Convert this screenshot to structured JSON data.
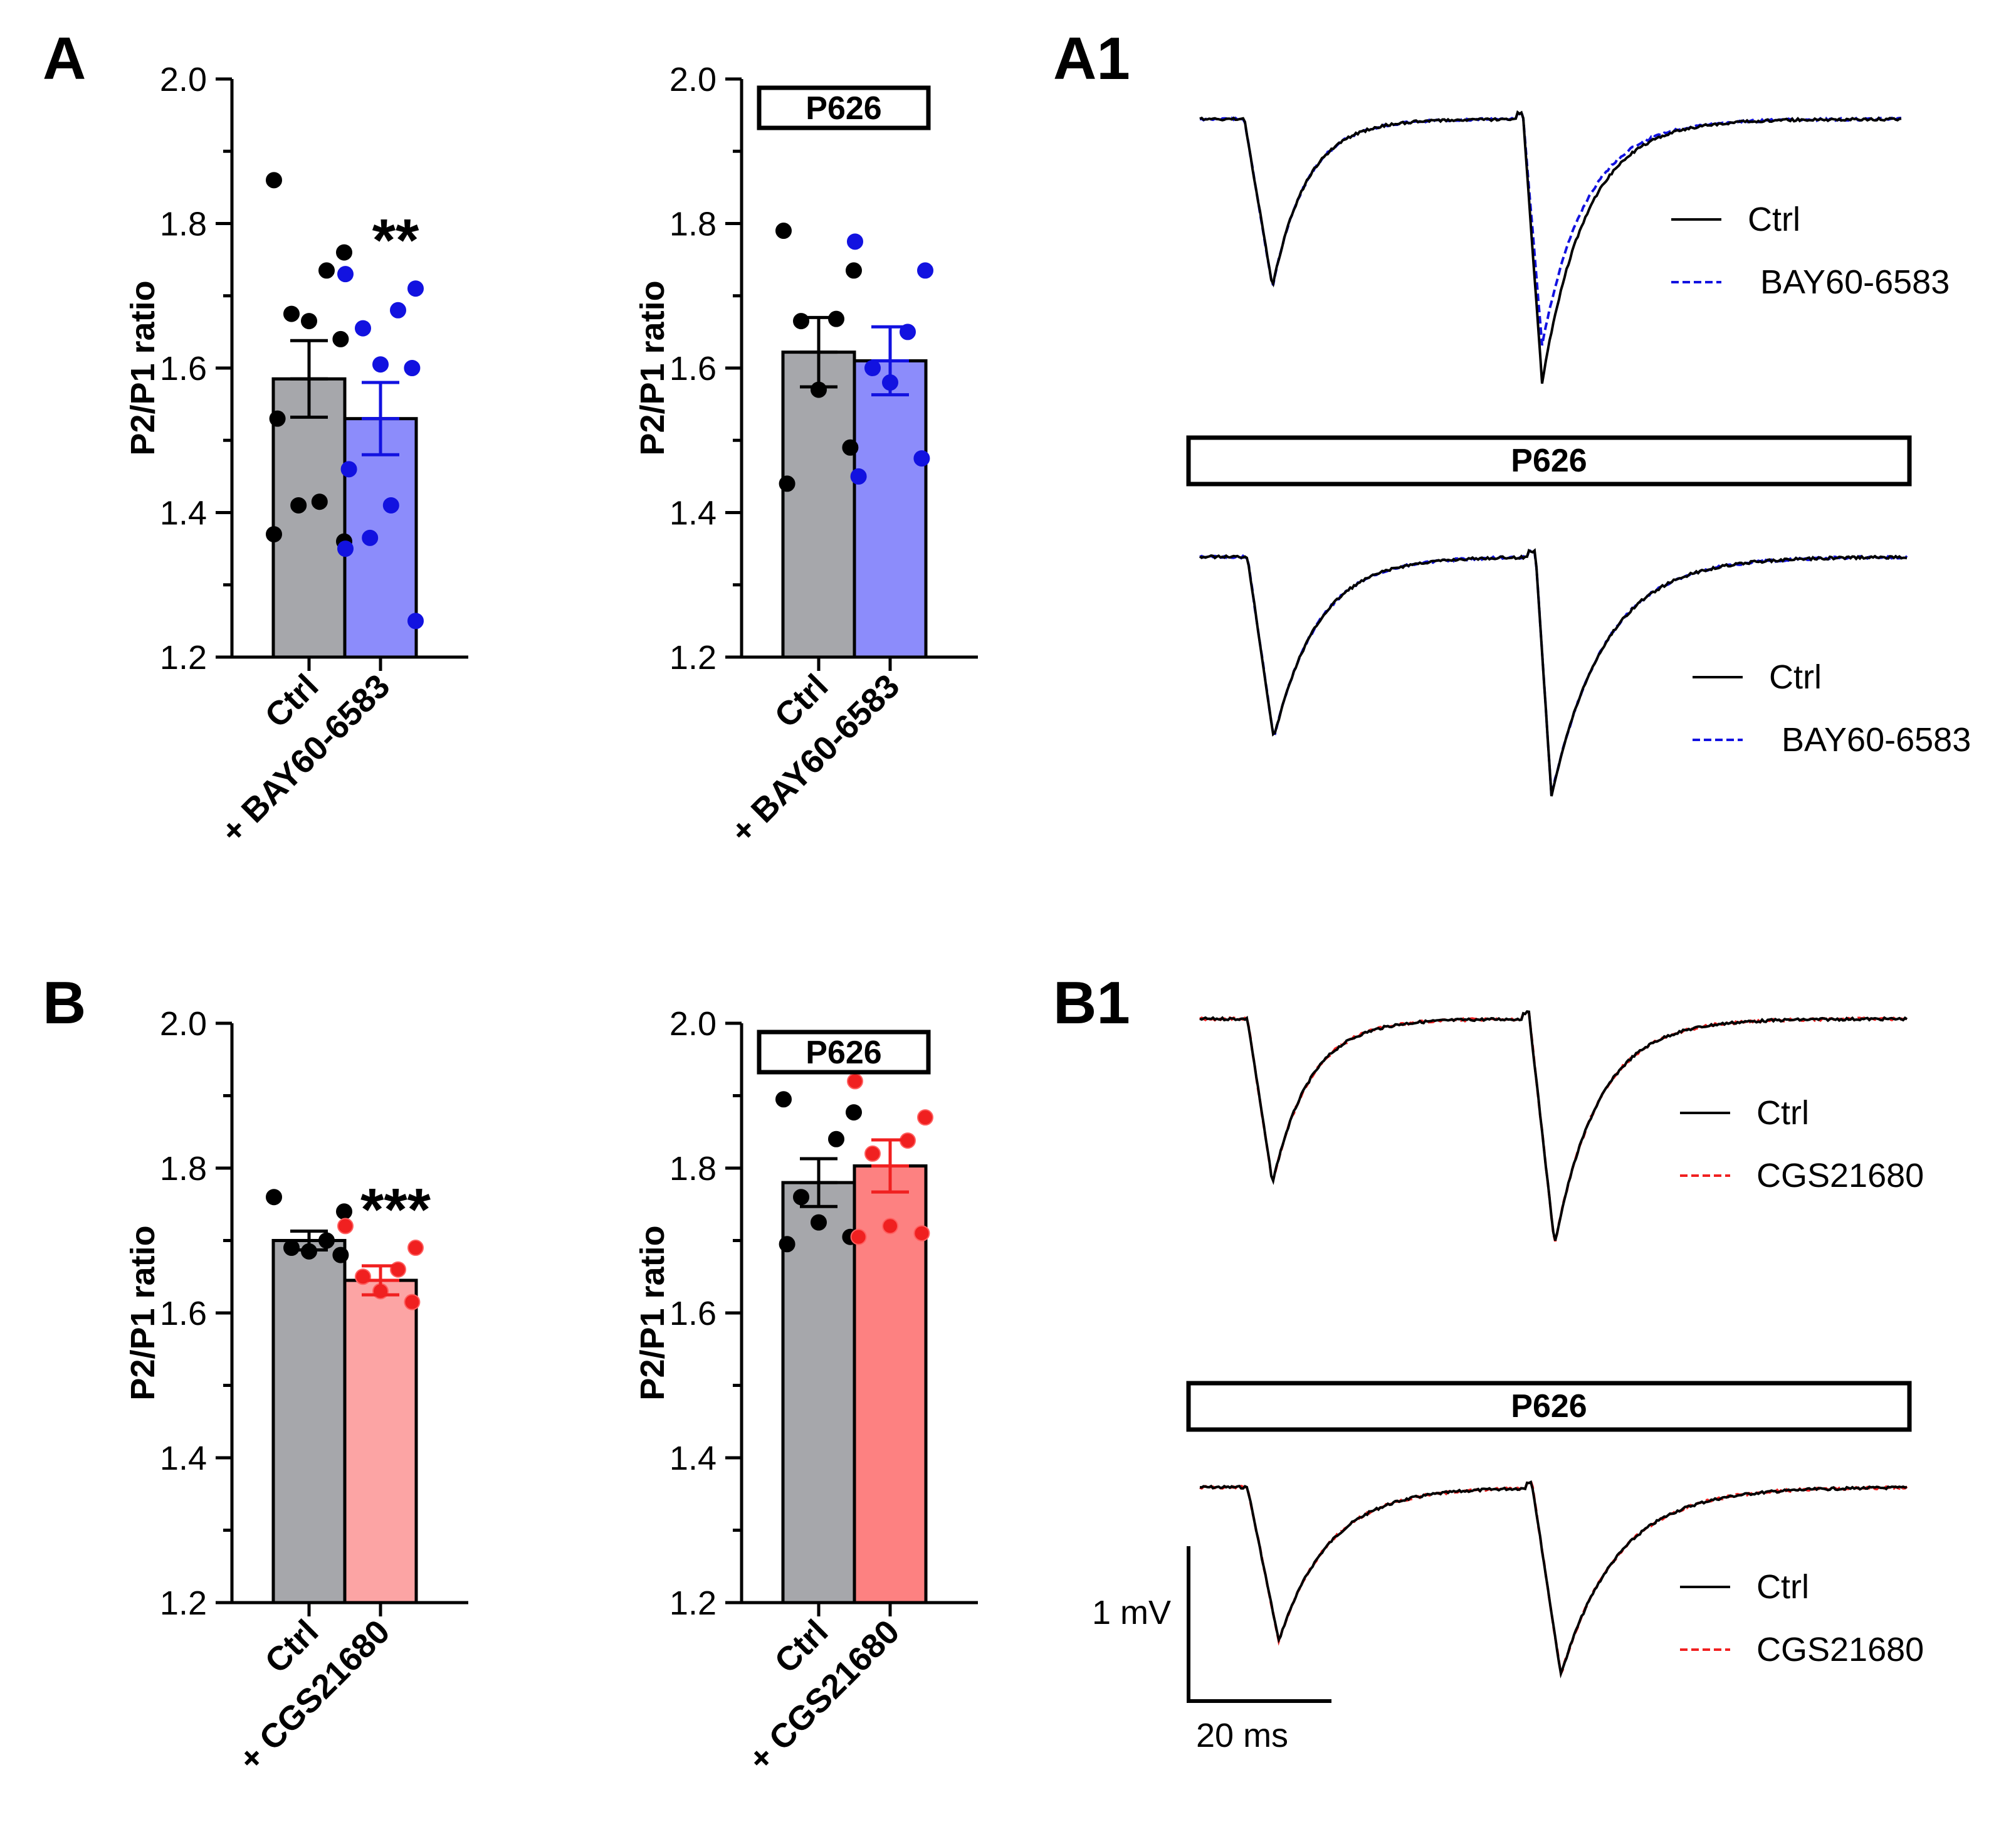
{
  "panels": {
    "A": "A",
    "A1": "A1",
    "B": "B",
    "B1": "B1"
  },
  "colors": {
    "ctrl_bar": "#a6a7ab",
    "bay_bar": "#8c8cfb",
    "bay_dot": "#1212e0",
    "cgs_bar_light": "#fca4a4",
    "cgs_bar_dark": "#fd8181",
    "cgs_dot": "#f02020",
    "black": "#000000"
  },
  "chart_data": [
    {
      "id": "A-left",
      "type": "bar",
      "title": "",
      "ylabel": "P2/P1 ratio",
      "ylim": [
        1.2,
        2.0
      ],
      "yticks": [
        "1.2",
        "1.4",
        "1.6",
        "1.8",
        "2.0"
      ],
      "categories": [
        "Ctrl",
        "+ BAY60-6583"
      ],
      "values": [
        1.585,
        1.53
      ],
      "sem": [
        0.053,
        0.05
      ],
      "points": [
        [
          1.86,
          1.76,
          1.735,
          1.675,
          1.665,
          1.64,
          1.53,
          1.415,
          1.41,
          1.37,
          1.36
        ],
        [
          1.73,
          1.71,
          1.68,
          1.655,
          1.605,
          1.6,
          1.46,
          1.41,
          1.365,
          1.35,
          1.25
        ]
      ],
      "significance": "**",
      "box_label": ""
    },
    {
      "id": "A-right",
      "type": "bar",
      "title": "",
      "ylabel": "P2/P1 ratio",
      "ylim": [
        1.2,
        2.0
      ],
      "yticks": [
        "1.2",
        "1.4",
        "1.6",
        "1.8",
        "2.0"
      ],
      "categories": [
        "Ctrl",
        "+ BAY60-6583"
      ],
      "values": [
        1.622,
        1.61
      ],
      "sem": [
        0.048,
        0.047
      ],
      "points": [
        [
          1.79,
          1.735,
          1.668,
          1.665,
          1.57,
          1.49,
          1.44
        ],
        [
          1.775,
          1.735,
          1.65,
          1.6,
          1.58,
          1.475,
          1.45
        ]
      ],
      "significance": "",
      "box_label": "P626"
    },
    {
      "id": "B-left",
      "type": "bar",
      "title": "",
      "ylabel": "P2/P1 ratio",
      "ylim": [
        1.2,
        2.0
      ],
      "yticks": [
        "1.2",
        "1.4",
        "1.6",
        "1.8",
        "2.0"
      ],
      "categories": [
        "Ctrl",
        "+ CGS21680"
      ],
      "values": [
        1.7,
        1.645
      ],
      "sem": [
        0.013,
        0.02
      ],
      "points": [
        [
          1.76,
          1.74,
          1.7,
          1.69,
          1.685,
          1.68
        ],
        [
          1.72,
          1.69,
          1.66,
          1.65,
          1.63,
          1.615
        ]
      ],
      "significance": "***",
      "box_label": ""
    },
    {
      "id": "B-right",
      "type": "bar",
      "title": "",
      "ylabel": "P2/P1 ratio",
      "ylim": [
        1.2,
        2.0
      ],
      "yticks": [
        "1.2",
        "1.4",
        "1.6",
        "1.8",
        "2.0"
      ],
      "categories": [
        "Ctrl",
        "+ CGS21680"
      ],
      "values": [
        1.78,
        1.803
      ],
      "sem": [
        0.033,
        0.036
      ],
      "points": [
        [
          1.895,
          1.877,
          1.84,
          1.76,
          1.725,
          1.705,
          1.695
        ],
        [
          1.92,
          1.87,
          1.838,
          1.82,
          1.72,
          1.71,
          1.705
        ]
      ],
      "significance": "",
      "box_label": "P626"
    }
  ],
  "traces": {
    "A1": {
      "box_label": "P626",
      "legend_ctrl": "Ctrl",
      "legend_drug": "BAY60-6583"
    },
    "B1": {
      "box_label": "P626",
      "legend_ctrl": "Ctrl",
      "legend_drug": "CGS21680"
    },
    "scale_bar": {
      "voltage_label": "1 mV",
      "time_label": "20 ms"
    }
  }
}
